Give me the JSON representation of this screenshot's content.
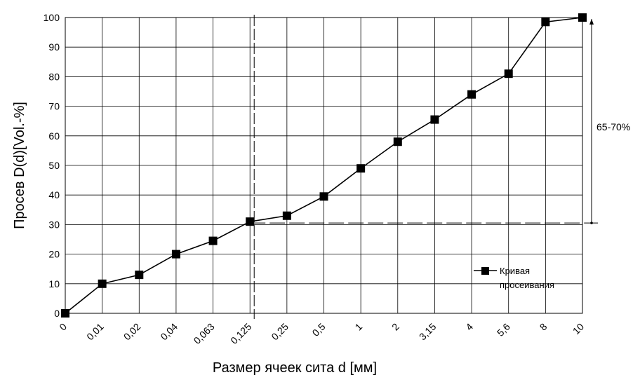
{
  "chart_data": {
    "type": "line",
    "categories": [
      "0",
      "0,01",
      "0,02",
      "0,04",
      "0,063",
      "0,125",
      "0,25",
      "0,5",
      "1",
      "2",
      "3,15",
      "4",
      "5,6",
      "8",
      "10"
    ],
    "series": [
      {
        "name": "Кривая просеивания",
        "values": [
          0,
          10,
          13,
          20,
          24.5,
          31,
          33,
          39.5,
          49,
          58,
          65.5,
          74,
          81,
          98.5,
          100
        ]
      }
    ],
    "ylabel": "Просев D(d)[Vol.-%]",
    "xlabel": "Размер ячеек сита d [мм]",
    "ylim": [
      0,
      100
    ],
    "yticks": [
      0,
      10,
      20,
      30,
      40,
      50,
      60,
      70,
      80,
      90,
      100
    ],
    "grid": true,
    "legend": {
      "position": "bottom-right",
      "lines": [
        "Кривая",
        "просеивания"
      ]
    },
    "reference_category": "0,125",
    "reference_value": 31,
    "annotation": "65-70%",
    "line_color": "#000000",
    "marker": "square"
  }
}
